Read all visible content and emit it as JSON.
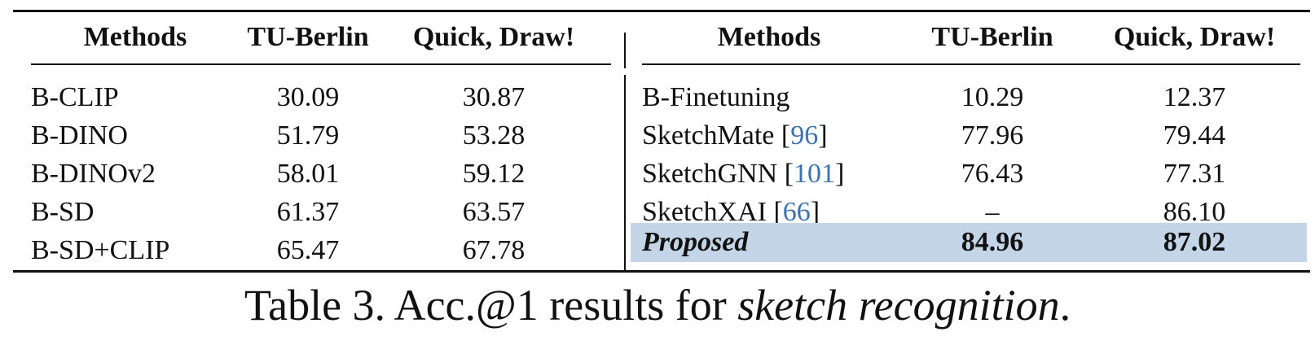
{
  "left_table": {
    "headers": [
      "Methods",
      "TU-Berlin",
      "Quick, Draw!"
    ],
    "rows": [
      {
        "method": "B-CLIP",
        "tu_berlin": "30.09",
        "quick_draw": "30.87"
      },
      {
        "method": "B-DINO",
        "tu_berlin": "51.79",
        "quick_draw": "53.28"
      },
      {
        "method": "B-DINOv2",
        "tu_berlin": "58.01",
        "quick_draw": "59.12"
      },
      {
        "method": "B-SD",
        "tu_berlin": "61.37",
        "quick_draw": "63.57"
      },
      {
        "method": "B-SD+CLIP",
        "tu_berlin": "65.47",
        "quick_draw": "67.78"
      }
    ]
  },
  "right_table": {
    "headers": [
      "Methods",
      "TU-Berlin",
      "Quick, Draw!"
    ],
    "rows": [
      {
        "method": "B-Finetuning",
        "cite": "",
        "tu_berlin": "10.29",
        "quick_draw": "12.37"
      },
      {
        "method": "SketchMate",
        "cite": "96",
        "tu_berlin": "77.96",
        "quick_draw": "79.44"
      },
      {
        "method": "SketchGNN",
        "cite": "101",
        "tu_berlin": "76.43",
        "quick_draw": "77.31"
      },
      {
        "method": "SketchXAI",
        "cite": "66",
        "tu_berlin": "–",
        "quick_draw": "86.10"
      }
    ],
    "proposed": {
      "method": "Proposed",
      "tu_berlin": "84.96",
      "quick_draw": "87.02"
    }
  },
  "caption": {
    "prefix": "Table 3. Acc.@1 results for ",
    "emphasis": "sketch recognition",
    "suffix": "."
  },
  "colors": {
    "highlight": "#c3d5e6",
    "citation": "#3d72b0"
  }
}
